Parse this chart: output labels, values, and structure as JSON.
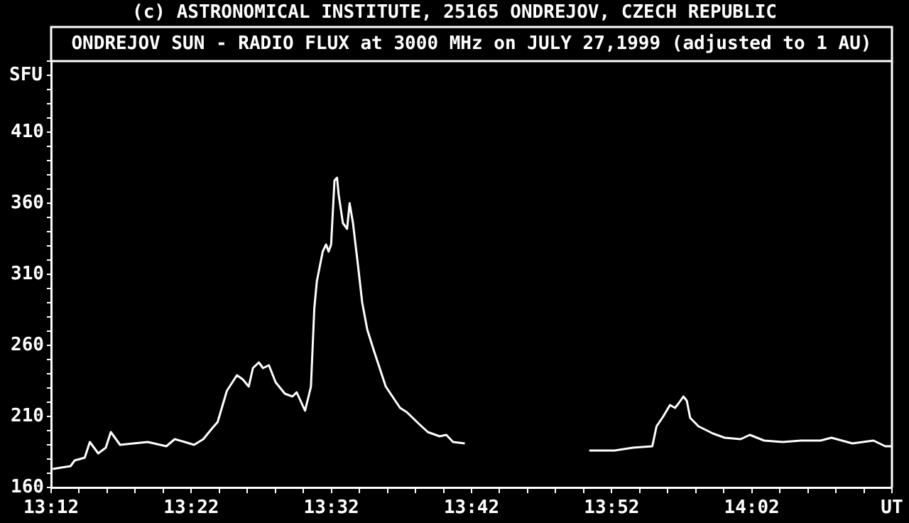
{
  "chart_data": {
    "type": "line",
    "title": "(c) ASTRONOMICAL INSTITUTE, 25165 ONDREJOV, CZECH REPUBLIC",
    "subtitle": "ONDREJOV SUN - RADIO FLUX at 3000 MHz on JULY 27,1999 (adjusted to 1 AU)",
    "ylabel": "SFU",
    "x": [
      13.202,
      13.212,
      13.223,
      13.228,
      13.24,
      13.246,
      13.256,
      13.265,
      13.271,
      13.282,
      13.298,
      13.315,
      13.337,
      13.347,
      13.359,
      13.37,
      13.381,
      13.392,
      13.398,
      13.409,
      13.421,
      13.428,
      13.435,
      13.44,
      13.447,
      13.452,
      13.459,
      13.467,
      13.478,
      13.487,
      13.492,
      13.502,
      13.509,
      13.513,
      13.516,
      13.523,
      13.527,
      13.53,
      13.533,
      13.537,
      13.54,
      13.542,
      13.547,
      13.552,
      13.555,
      13.559,
      13.565,
      13.57,
      13.576,
      13.584,
      13.598,
      13.615,
      13.623,
      13.637,
      13.648,
      13.662,
      13.67,
      13.678,
      13.692,
      13.75,
      13.84,
      13.87,
      13.892,
      13.915,
      13.92,
      13.928,
      13.936,
      13.942,
      13.946,
      13.952,
      13.956,
      13.96,
      13.97,
      13.987,
      14.001,
      14.02,
      14.031,
      14.048,
      14.07,
      14.092,
      14.115,
      14.128,
      14.153,
      14.178,
      14.192,
      14.2
    ],
    "series": [
      {
        "color": "#ffffff",
        "values": [
          173,
          174,
          175,
          179,
          181,
          192,
          184,
          188,
          199,
          190,
          191,
          192,
          189,
          194,
          192,
          190,
          194,
          202,
          206,
          228,
          239,
          236,
          231,
          244,
          248,
          244,
          246,
          234,
          226,
          224,
          227,
          214,
          231,
          286,
          305,
          326,
          331,
          326,
          331,
          376,
          378,
          366,
          346,
          342,
          360,
          346,
          316,
          290,
          271,
          256,
          231,
          216,
          213,
          205,
          199,
          196,
          197,
          192,
          191,
          null,
          186,
          186,
          188,
          189,
          203,
          210,
          218,
          216,
          219,
          224,
          221,
          209,
          203,
          198,
          195,
          194,
          197,
          193,
          192,
          193,
          193,
          195,
          191,
          193,
          189,
          189
        ]
      }
    ],
    "xlim": [
      13.2,
      14.2
    ],
    "xticks": [
      {
        "value": 13.2,
        "label": "13:12"
      },
      {
        "value": 13.2333,
        "label": null
      },
      {
        "value": 13.2667,
        "label": null
      },
      {
        "value": 13.3,
        "label": null
      },
      {
        "value": 13.3333,
        "label": null
      },
      {
        "value": 13.3667,
        "label": "13:22"
      },
      {
        "value": 13.4,
        "label": null
      },
      {
        "value": 13.4333,
        "label": null
      },
      {
        "value": 13.4667,
        "label": null
      },
      {
        "value": 13.5,
        "label": null
      },
      {
        "value": 13.5333,
        "label": "13:32"
      },
      {
        "value": 13.5667,
        "label": null
      },
      {
        "value": 13.6,
        "label": null
      },
      {
        "value": 13.6333,
        "label": null
      },
      {
        "value": 13.6667,
        "label": null
      },
      {
        "value": 13.7,
        "label": "13:42"
      },
      {
        "value": 13.7333,
        "label": null
      },
      {
        "value": 13.7667,
        "label": null
      },
      {
        "value": 13.8,
        "label": null
      },
      {
        "value": 13.8333,
        "label": null
      },
      {
        "value": 13.8667,
        "label": "13:52"
      },
      {
        "value": 13.9,
        "label": null
      },
      {
        "value": 13.9333,
        "label": null
      },
      {
        "value": 13.9667,
        "label": null
      },
      {
        "value": 14.0,
        "label": null
      },
      {
        "value": 14.0333,
        "label": "14:02"
      },
      {
        "value": 14.0667,
        "label": null
      },
      {
        "value": 14.1,
        "label": null
      },
      {
        "value": 14.1333,
        "label": null
      },
      {
        "value": 14.1667,
        "label": null
      },
      {
        "value": 14.2,
        "label": "UT"
      }
    ],
    "ylim": [
      160,
      460
    ],
    "yticks": [
      160,
      {
        "value": 170,
        "label": null
      },
      {
        "value": 180,
        "label": null
      },
      {
        "value": 190,
        "label": null
      },
      {
        "value": 200,
        "label": null
      },
      210,
      {
        "value": 220,
        "label": null
      },
      {
        "value": 230,
        "label": null
      },
      {
        "value": 240,
        "label": null
      },
      {
        "value": 250,
        "label": null
      },
      260,
      {
        "value": 270,
        "label": null
      },
      {
        "value": 280,
        "label": null
      },
      {
        "value": 290,
        "label": null
      },
      {
        "value": 300,
        "label": null
      },
      310,
      {
        "value": 320,
        "label": null
      },
      {
        "value": 330,
        "label": null
      },
      {
        "value": 340,
        "label": null
      },
      {
        "value": 350,
        "label": null
      },
      360,
      {
        "value": 370,
        "label": null
      },
      {
        "value": 380,
        "label": null
      },
      {
        "value": 390,
        "label": null
      },
      {
        "value": 400,
        "label": null
      },
      410,
      {
        "value": 420,
        "label": null
      },
      {
        "value": 430,
        "label": null
      },
      {
        "value": 440,
        "label": null
      },
      {
        "value": 450,
        "label": null
      },
      {
        "value": 460,
        "label": null
      }
    ],
    "marker": "none",
    "line_style": "solid"
  }
}
